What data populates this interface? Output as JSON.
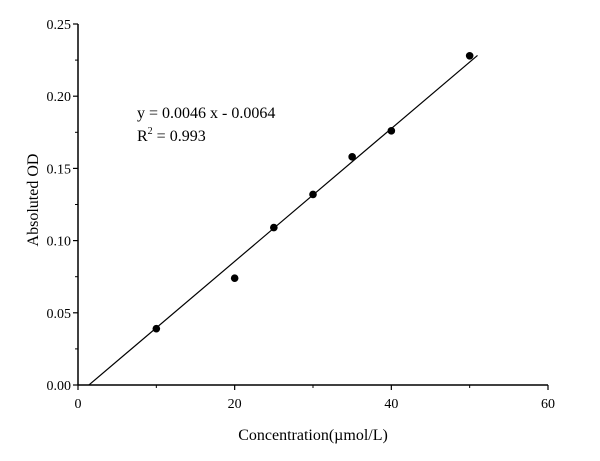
{
  "chart_data": {
    "type": "scatter",
    "title": "",
    "xlabel": "Concentration(µmol/L)",
    "ylabel": "Absoluted OD",
    "xlim": [
      0,
      60
    ],
    "ylim": [
      0,
      0.25
    ],
    "x_ticks": [
      0,
      20,
      40,
      60
    ],
    "x_tick_labels": [
      "0",
      "20",
      "40",
      "60"
    ],
    "y_ticks": [
      0,
      0.05,
      0.1,
      0.15,
      0.2,
      0.25
    ],
    "y_tick_labels": [
      "0.00",
      "0.05",
      "0.10",
      "0.15",
      "0.20",
      "0.25"
    ],
    "grid": false,
    "series": [
      {
        "x": [
          10,
          20,
          25,
          30,
          35,
          40,
          50
        ],
        "y": [
          0.039,
          0.074,
          0.109,
          0.132,
          0.158,
          0.176,
          0.228
        ],
        "color": "#000000",
        "marker": "circle"
      }
    ],
    "fit_line": {
      "slope": 0.0046,
      "intercept": -0.0064,
      "x_range": [
        1.4,
        51
      ],
      "color": "#000000"
    },
    "annotations": {
      "equation": "y = 0.0046 x - 0.0064",
      "r2_prefix": "R",
      "r2_sup": "2",
      "r2_value": " =  0.993"
    }
  }
}
